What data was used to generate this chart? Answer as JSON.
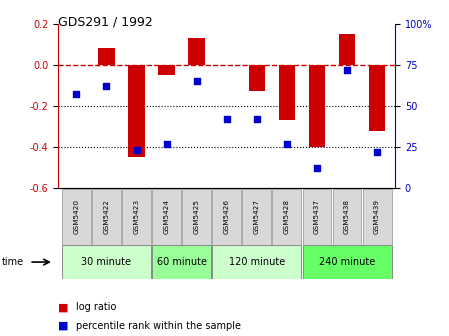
{
  "title": "GDS291 / 1992",
  "samples": [
    "GSM5420",
    "GSM5422",
    "GSM5423",
    "GSM5424",
    "GSM5425",
    "GSM5426",
    "GSM5427",
    "GSM5428",
    "GSM5437",
    "GSM5438",
    "GSM5439"
  ],
  "log_ratio": [
    0.0,
    0.08,
    -0.45,
    -0.05,
    0.13,
    0.0,
    -0.13,
    -0.27,
    -0.4,
    0.15,
    -0.32
  ],
  "percentile": [
    57,
    62,
    23,
    27,
    65,
    42,
    42,
    27,
    12,
    72,
    22
  ],
  "ylim_left": [
    -0.6,
    0.2
  ],
  "ylim_right": [
    0,
    100
  ],
  "yticks_left": [
    -0.6,
    -0.4,
    -0.2,
    0.0,
    0.2
  ],
  "yticks_right": [
    0,
    25,
    50,
    75,
    100
  ],
  "ytick_labels_right": [
    "0",
    "25",
    "50",
    "75",
    "100%"
  ],
  "bar_color": "#cc0000",
  "dot_color": "#0000cc",
  "dash_color": "#cc0000",
  "grid_color": "#000000",
  "time_groups": [
    {
      "label": "30 minute",
      "start": 0,
      "end": 2,
      "color": "#ccffcc"
    },
    {
      "label": "60 minute",
      "start": 3,
      "end": 4,
      "color": "#99ff99"
    },
    {
      "label": "120 minute",
      "start": 5,
      "end": 7,
      "color": "#ccffcc"
    },
    {
      "label": "240 minute",
      "start": 8,
      "end": 10,
      "color": "#66ff66"
    }
  ],
  "xlabel_time": "time",
  "legend_log": "log ratio",
  "legend_pct": "percentile rank within the sample",
  "label_bg": "#d8d8d8",
  "label_edge": "#aaaaaa"
}
